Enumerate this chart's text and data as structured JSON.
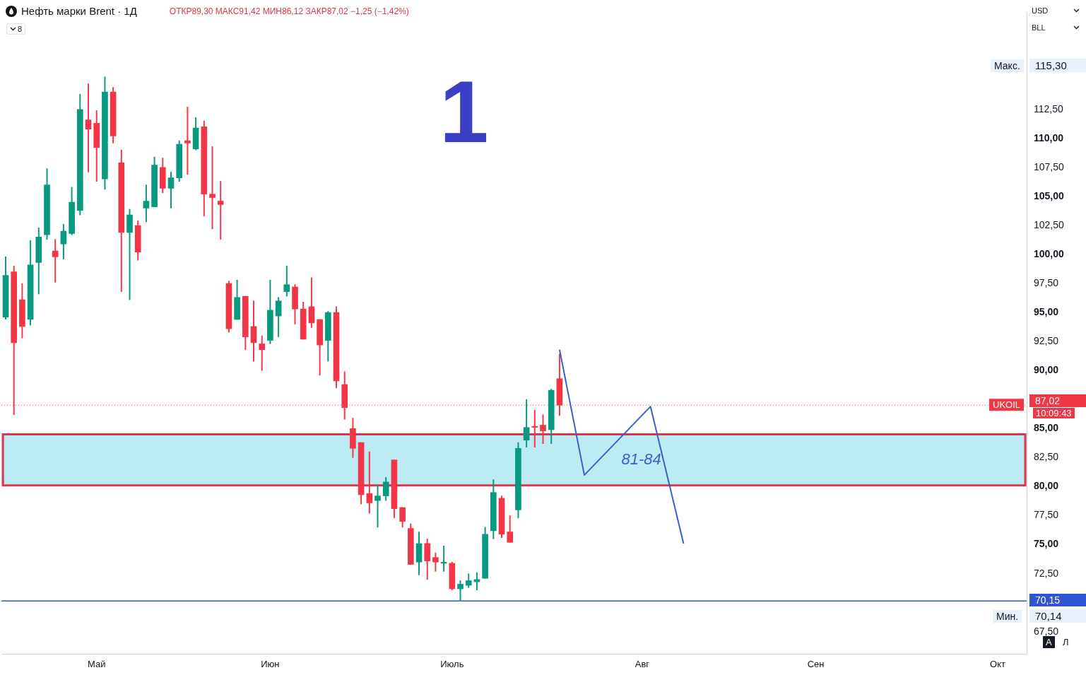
{
  "chart_data": {
    "type": "candlestick",
    "title": "Нефть марки Brent · 1Д",
    "subtitle": "ОТКР89,30 МАКС91,42 МИН86,12 ЗАКР87,02 −1,25 (−1,42%)",
    "categories": [
      null,
      null,
      null,
      null,
      null,
      null,
      null,
      null,
      null,
      null,
      null,
      "Май",
      null,
      null,
      null,
      null,
      null,
      null,
      null,
      null,
      null,
      null,
      null,
      null,
      null,
      null,
      null,
      null,
      null,
      null,
      null,
      null,
      "Июн",
      null,
      null,
      null,
      null,
      null,
      null,
      null,
      null,
      null,
      null,
      null,
      null,
      null,
      null,
      null,
      null,
      null,
      null,
      null,
      null,
      null,
      "Июль",
      null,
      null,
      null,
      null,
      null,
      null,
      null,
      null,
      null,
      null,
      null,
      null,
      null,
      null,
      null,
      null,
      null,
      null,
      null,
      null,
      null,
      null,
      "Авг",
      null,
      null,
      null,
      null,
      null,
      null,
      null,
      null,
      null,
      null,
      null,
      null,
      null,
      null,
      null,
      null,
      null,
      null,
      null,
      null,
      "Сен",
      null,
      null,
      null,
      null,
      null,
      null,
      null,
      null,
      null,
      null,
      null,
      null,
      null,
      null,
      null,
      null,
      null,
      null,
      null,
      null,
      null,
      "Окт",
      null,
      null,
      null
    ],
    "ohlc": [
      [
        94.6,
        99.8,
        94.4,
        98.2
      ],
      [
        98.5,
        99.0,
        86.2,
        92.4
      ],
      [
        96.1,
        97.5,
        92.8,
        93.8
      ],
      [
        94.4,
        101.2,
        93.9,
        99.1
      ],
      [
        99.3,
        102.3,
        96.6,
        101.5
      ],
      [
        101.7,
        107.4,
        101.3,
        106.0
      ],
      [
        100.3,
        101.3,
        97.6,
        99.8
      ],
      [
        100.9,
        102.6,
        99.6,
        102.0
      ],
      [
        101.8,
        105.8,
        101.7,
        104.5
      ],
      [
        103.8,
        113.8,
        103.4,
        112.5
      ],
      [
        111.6,
        114.7,
        107.1,
        110.8
      ],
      [
        111.3,
        112.4,
        106.3,
        109.2
      ],
      [
        106.5,
        115.3,
        105.6,
        114.0
      ],
      [
        114.0,
        114.4,
        109.6,
        110.2
      ],
      [
        107.9,
        109.0,
        96.8,
        101.9
      ],
      [
        101.9,
        103.9,
        96.1,
        103.4
      ],
      [
        102.5,
        102.9,
        99.5,
        100.2
      ],
      [
        104.0,
        106.0,
        102.8,
        104.6
      ],
      [
        104.1,
        108.4,
        104.1,
        107.7
      ],
      [
        107.5,
        108.3,
        105.3,
        105.7
      ],
      [
        105.7,
        107.1,
        104.0,
        106.6
      ],
      [
        106.6,
        109.8,
        106.3,
        109.5
      ],
      [
        109.8,
        112.7,
        106.9,
        109.6
      ],
      [
        109.1,
        111.8,
        109.0,
        110.9
      ],
      [
        111.0,
        111.5,
        103.3,
        105.2
      ],
      [
        105.2,
        109.3,
        102.2,
        104.9
      ],
      [
        104.6,
        106.3,
        101.3,
        104.3
      ],
      [
        97.5,
        97.7,
        93.3,
        93.6
      ],
      [
        94.4,
        97.8,
        94.4,
        96.3
      ],
      [
        96.4,
        96.4,
        91.8,
        92.9
      ],
      [
        93.8,
        96.0,
        90.8,
        92.4
      ],
      [
        92.3,
        93.0,
        90.0,
        91.8
      ],
      [
        92.6,
        97.8,
        92.3,
        95.2
      ],
      [
        94.7,
        96.3,
        92.9,
        96.0
      ],
      [
        96.8,
        99.0,
        96.4,
        97.4
      ],
      [
        97.2,
        97.4,
        94.0,
        95.3
      ],
      [
        95.3,
        95.9,
        92.7,
        92.7
      ],
      [
        95.5,
        98.0,
        93.7,
        94.1
      ],
      [
        94.4,
        94.4,
        89.6,
        92.2
      ],
      [
        92.6,
        95.1,
        90.8,
        95.0
      ],
      [
        95.0,
        95.5,
        88.5,
        89.1
      ],
      [
        88.8,
        89.9,
        85.8,
        86.8
      ],
      [
        85.0,
        85.9,
        82.5,
        83.3
      ],
      [
        83.8,
        83.8,
        78.5,
        79.3
      ],
      [
        79.4,
        83.0,
        77.7,
        78.6
      ],
      [
        78.8,
        80.1,
        76.5,
        79.2
      ],
      [
        79.2,
        80.8,
        78.8,
        80.4
      ],
      [
        82.3,
        82.3,
        77.3,
        78.1
      ],
      [
        78.2,
        78.2,
        76.5,
        77.0
      ],
      [
        76.4,
        76.8,
        73.3,
        73.3
      ],
      [
        73.5,
        76.1,
        72.4,
        75.1
      ],
      [
        75.1,
        75.5,
        72.0,
        73.6
      ],
      [
        73.9,
        74.3,
        72.7,
        73.5
      ],
      [
        73.4,
        74.9,
        72.7,
        73.4
      ],
      [
        73.4,
        73.5,
        71.1,
        71.2
      ],
      [
        71.2,
        71.9,
        70.14,
        71.6
      ],
      [
        71.5,
        72.5,
        71.3,
        71.9
      ],
      [
        71.8,
        72.6,
        71.1,
        72.0
      ],
      [
        72.1,
        76.5,
        72.1,
        75.9
      ],
      [
        76.2,
        80.6,
        75.5,
        79.5
      ],
      [
        79.0,
        79.2,
        75.6,
        75.9
      ],
      [
        76.1,
        77.5,
        75.2,
        75.2
      ],
      [
        78.0,
        83.8,
        77.3,
        83.3
      ],
      [
        84.0,
        87.5,
        83.4,
        85.1
      ],
      [
        85.2,
        86.6,
        83.4,
        85.1
      ],
      [
        85.3,
        86.2,
        83.7,
        84.8
      ],
      [
        84.9,
        88.4,
        83.7,
        88.3
      ],
      [
        89.3,
        91.42,
        86.12,
        87.02
      ],
      null,
      null,
      null,
      null,
      null,
      null,
      null,
      null,
      null,
      null,
      null,
      null,
      null,
      null,
      null,
      null,
      null,
      null,
      null,
      null,
      null,
      null,
      null,
      null,
      null,
      null,
      null,
      null,
      null,
      null,
      null,
      null,
      null,
      null,
      null,
      null,
      null,
      null,
      null,
      null,
      null,
      null,
      null,
      null,
      null,
      null,
      null,
      null,
      null,
      null,
      null,
      null,
      null,
      null,
      null,
      null
    ],
    "colors": [
      "#089981",
      "#f23645",
      "#f23645",
      "#089981",
      "#089981",
      "#089981",
      "#f23645",
      "#089981",
      "#089981",
      "#089981",
      "#f23645",
      "#f23645",
      "#089981",
      "#f23645",
      "#f23645",
      "#089981",
      "#f23645",
      "#089981",
      "#089981",
      "#f23645",
      "#089981",
      "#089981",
      "#f23645",
      "#089981",
      "#f23645",
      "#f23645",
      "#f23645",
      "#f23645",
      "#089981",
      "#f23645",
      "#f23645",
      "#f23645",
      "#089981",
      "#089981",
      "#089981",
      "#f23645",
      "#f23645",
      "#f23645",
      "#f23645",
      "#089981",
      "#f23645",
      "#f23645",
      "#f23645",
      "#f23645",
      "#f23645",
      "#089981",
      "#089981",
      "#f23645",
      "#f23645",
      "#f23645",
      "#089981",
      "#f23645",
      "#f23645",
      "#089981",
      "#f23645",
      "#089981",
      "#089981",
      "#089981",
      "#089981",
      "#089981",
      "#f23645",
      "#f23645",
      "#089981",
      "#089981",
      "#f23645",
      "#f23645",
      "#089981",
      "#f23645",
      null,
      null,
      null,
      null,
      null,
      null,
      null,
      null,
      null,
      null,
      null,
      null,
      null,
      null,
      null,
      null,
      null,
      null,
      null,
      null,
      null,
      null,
      null,
      null,
      null,
      null,
      null,
      null,
      null,
      null,
      null,
      null,
      null,
      null,
      null,
      null,
      null,
      null,
      null,
      null,
      null,
      null,
      null,
      null,
      null,
      null,
      null,
      null,
      null,
      null,
      null,
      null,
      null,
      null,
      null,
      null
    ],
    "series": [
      {
        "type": "line",
        "color": "#3a5fd0",
        "values": [
          null,
          null,
          null,
          null,
          null,
          null,
          null,
          null,
          null,
          null,
          null,
          null,
          null,
          null,
          null,
          null,
          null,
          null,
          null,
          null,
          null,
          null,
          null,
          null,
          null,
          null,
          null,
          null,
          null,
          null,
          null,
          null,
          null,
          null,
          null,
          null,
          null,
          null,
          null,
          null,
          null,
          null,
          null,
          null,
          null,
          null,
          null,
          null,
          null,
          null,
          null,
          null,
          null,
          null,
          null,
          null,
          null,
          null,
          null,
          null,
          null,
          null,
          null,
          null,
          null,
          null,
          null,
          91.8,
          null,
          null,
          81.0,
          null,
          null,
          null,
          null,
          null,
          null,
          null,
          86.9,
          null,
          null,
          null,
          75.1,
          null,
          null,
          null,
          null,
          null,
          null,
          null,
          null,
          null,
          null,
          null,
          null,
          null,
          null,
          null,
          null,
          null,
          null,
          null,
          null,
          null,
          null,
          null,
          null,
          null,
          null,
          null,
          null,
          null,
          null,
          null,
          null,
          null,
          null,
          null,
          null,
          null,
          null,
          null,
          null,
          null
        ]
      }
    ],
    "marker": "none",
    "grid": false,
    "legend": false,
    "ylim": [
      65.6,
      120.8
    ],
    "yticks": [
      {
        "value": 67.5,
        "label": "67,50"
      },
      {
        "value": 72.5,
        "label": "72,50"
      },
      {
        "value": 75,
        "label": "75,00"
      },
      {
        "value": 77.5,
        "label": "77,50"
      },
      {
        "value": 80,
        "label": "80,00"
      },
      {
        "value": 82.5,
        "label": "82,50"
      },
      {
        "value": 85,
        "label": "85,00"
      },
      {
        "value": 90,
        "label": "90,00"
      },
      {
        "value": 92.5,
        "label": "92,50"
      },
      {
        "value": 95,
        "label": "95,00"
      },
      {
        "value": 97.5,
        "label": "97,50"
      },
      {
        "value": 100,
        "label": "100,00"
      },
      {
        "value": 102.5,
        "label": "102,50"
      },
      {
        "value": 105,
        "label": "105,00"
      },
      {
        "value": 107.5,
        "label": "107,50"
      },
      {
        "value": 110,
        "label": "110,00"
      },
      {
        "value": 112.5,
        "label": "112,50"
      }
    ],
    "ref_lines": [
      {
        "axis": "y",
        "value": 87.02,
        "label": "UKOIL",
        "color": "#f23645",
        "line_style": "dotted"
      },
      {
        "axis": "y",
        "value": 70.15,
        "color": "#2f55d4"
      }
    ],
    "bands": [
      {
        "axis": "y",
        "from": 80.1,
        "to": 84.5,
        "label": "81-84",
        "color": "#bdebf3"
      }
    ],
    "annotations": [
      "1",
      "10:09:43",
      "8",
      "USD",
      "BLL",
      "A",
      "Л",
      "Макс.",
      "115,30",
      "87,02",
      "Мин.",
      "70,14",
      "70,15"
    ]
  }
}
